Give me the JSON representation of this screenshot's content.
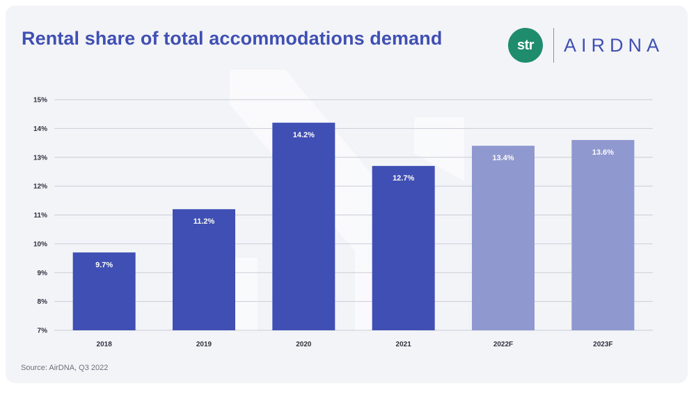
{
  "header": {
    "title": "Rental share of total accommodations demand",
    "str_logo_text": "str",
    "airdna_logo_text": "AIRDNA"
  },
  "footer": {
    "source": "Source: AirDNA, Q3 2022"
  },
  "colors": {
    "actual": "#3f4fb3",
    "forecast": "#8f98cf",
    "grid": "#c9ccd6",
    "str_green": "#1f8c6e"
  },
  "chart_data": {
    "type": "bar",
    "title": "Rental share of total accommodations demand",
    "categories": [
      "2018",
      "2019",
      "2020",
      "2021",
      "2022F",
      "2023F"
    ],
    "values": [
      9.7,
      11.2,
      14.2,
      12.7,
      13.4,
      13.6
    ],
    "data_labels": [
      "9.7%",
      "11.2%",
      "14.2%",
      "12.7%",
      "13.4%",
      "13.6%"
    ],
    "forecast": [
      false,
      false,
      false,
      false,
      true,
      true
    ],
    "ylim": [
      7,
      15
    ],
    "yticks": [
      7,
      8,
      9,
      10,
      11,
      12,
      13,
      14,
      15
    ],
    "ytick_labels": [
      "7%",
      "8%",
      "9%",
      "10%",
      "11%",
      "12%",
      "13%",
      "14%",
      "15%"
    ],
    "grid": true,
    "legend": "none"
  }
}
